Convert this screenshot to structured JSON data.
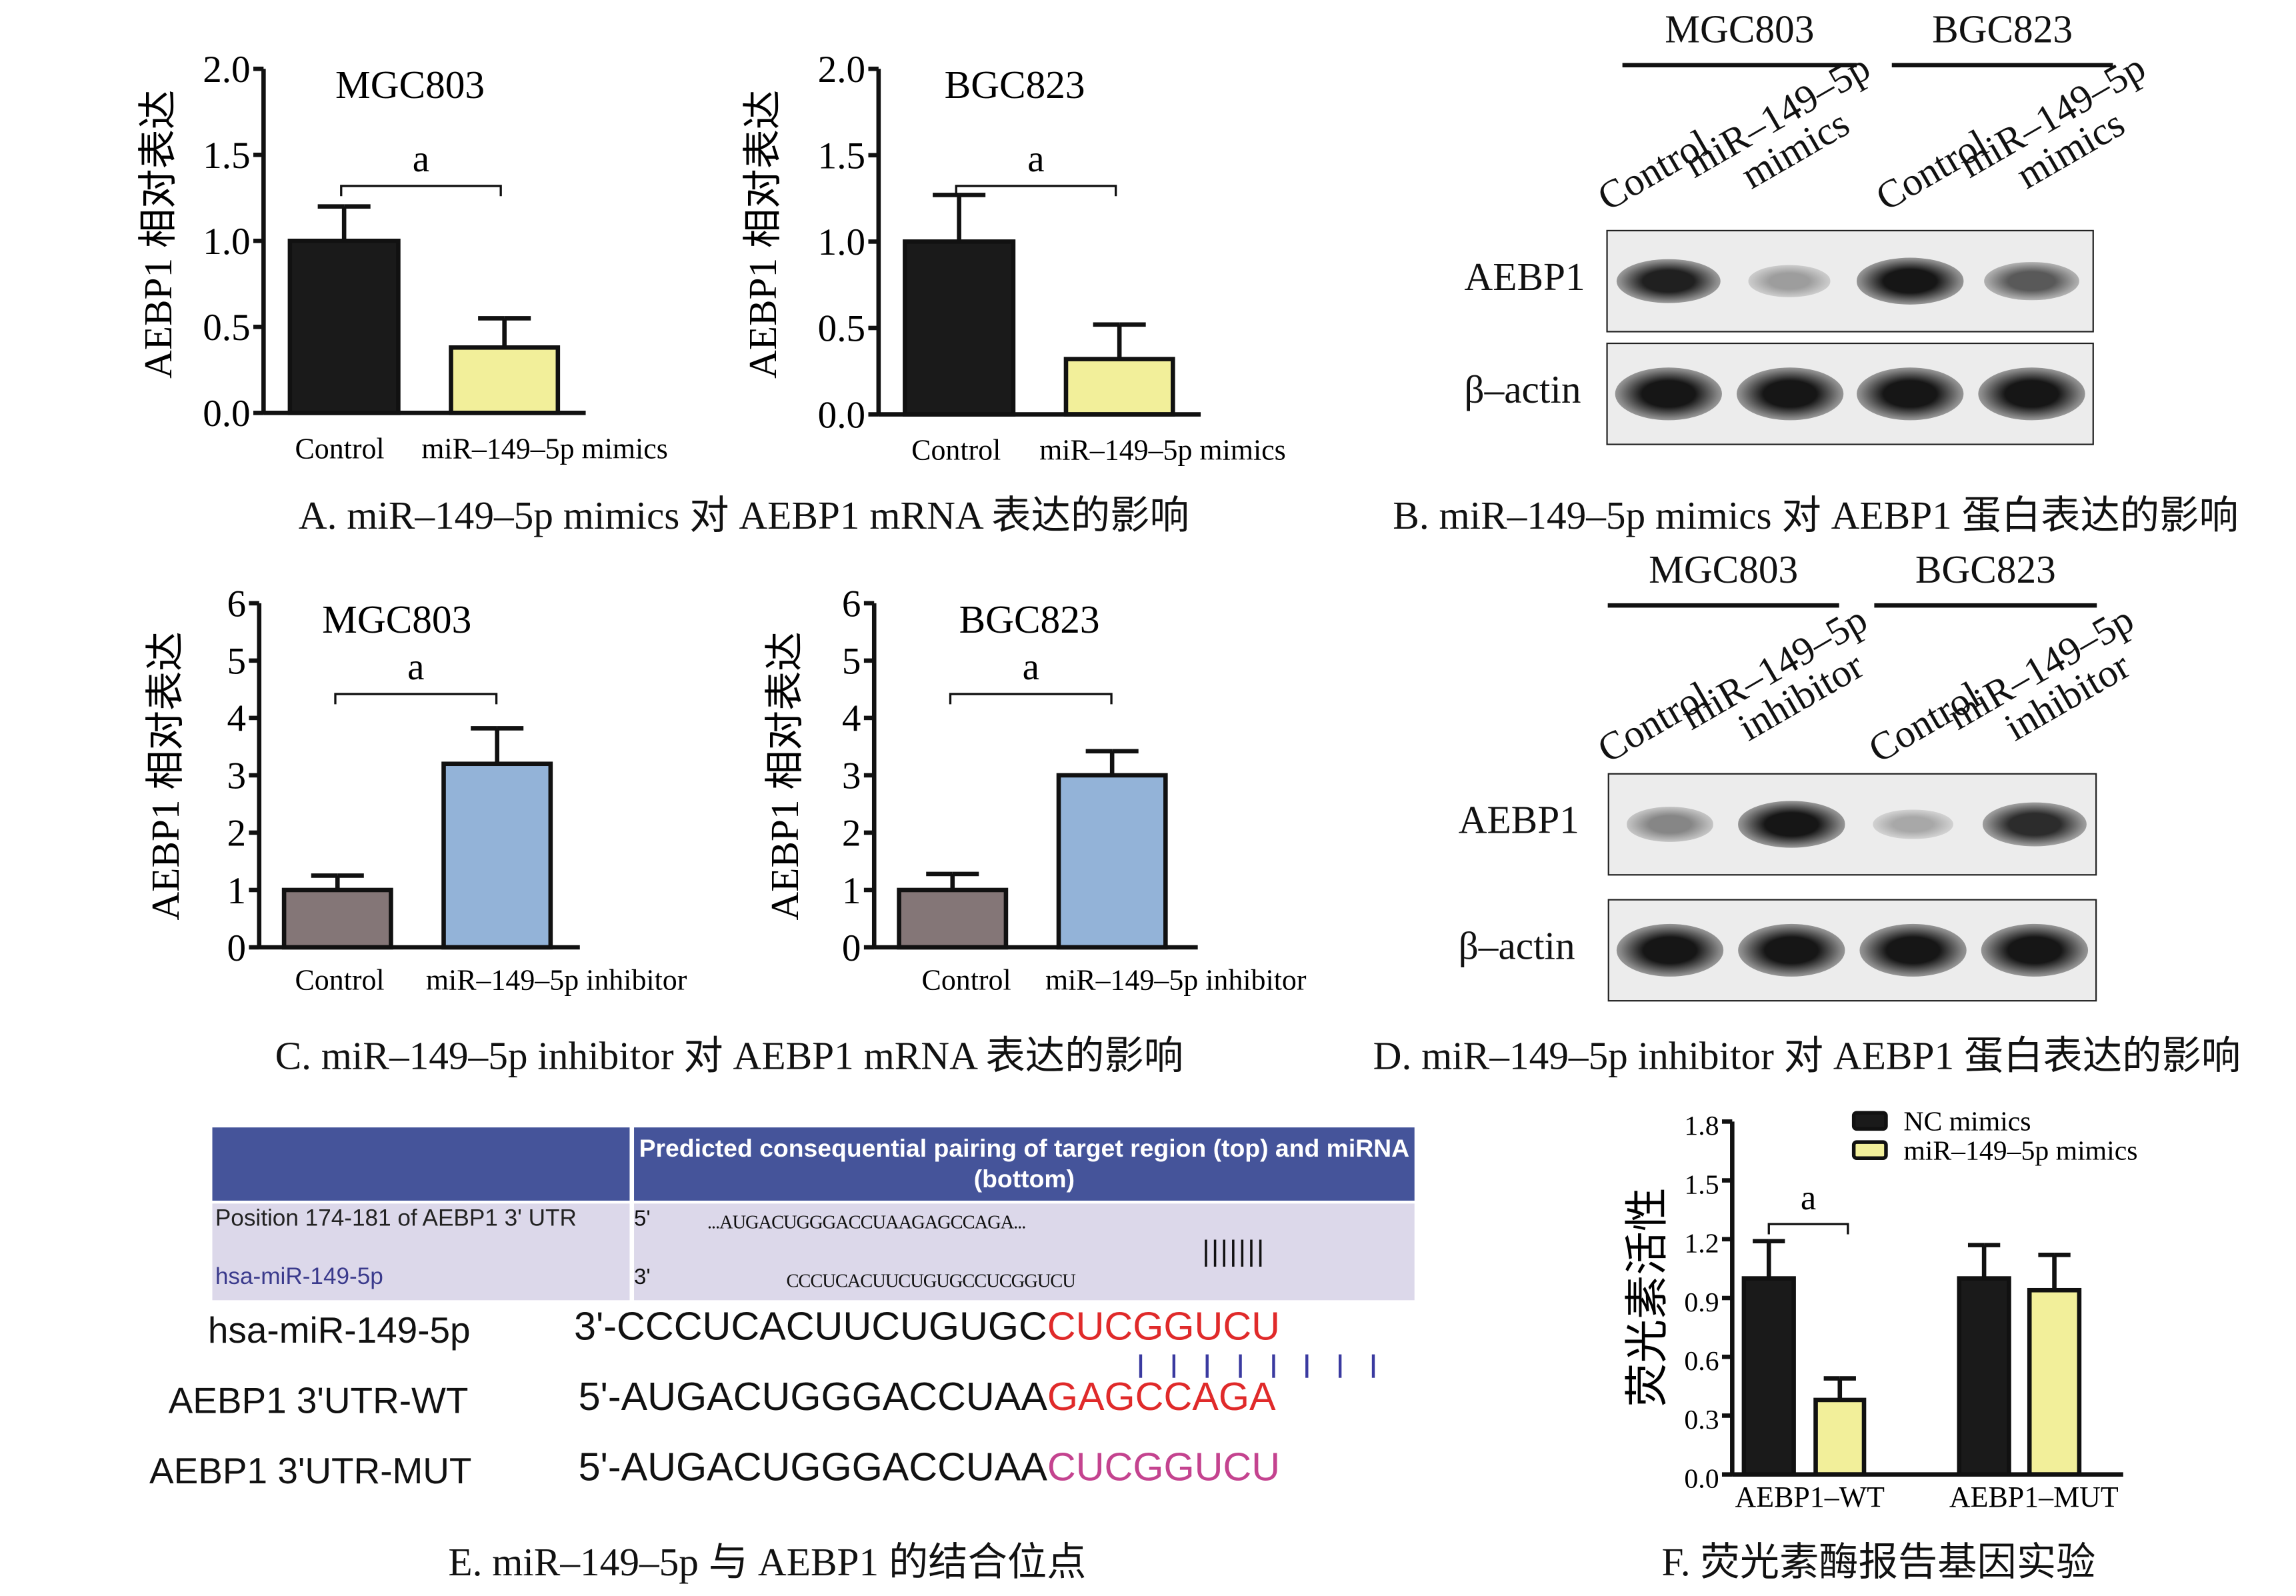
{
  "captions": {
    "A": "A. miR–149–5p mimics 对 AEBP1 mRNA 表达的影响",
    "B": "B. miR–149–5p mimics 对 AEBP1 蛋白表达的影响",
    "C": "C. miR–149–5p inhibitor 对 AEBP1 mRNA 表达的影响",
    "D": "D. miR–149–5p inhibitor 对 AEBP1 蛋白表达的影响",
    "E": "E. miR–149–5p 与 AEBP1 的结合位点",
    "F": "F. 荧光素酶报告基因实验"
  },
  "chart_data": [
    {
      "type": "bar",
      "panel": "A",
      "title": "MGC803",
      "ylabel": "AEBP1 相对表达",
      "xlabel": "",
      "categories": [
        "Control",
        "miR–149–5p mimics"
      ],
      "values": [
        1.0,
        0.38
      ],
      "error_upper": [
        1.2,
        0.55
      ],
      "colors": [
        "#1a1a1a",
        "#f2ef9a"
      ],
      "ylim": [
        0,
        2.0
      ],
      "yticks": [
        "0.0",
        "0.5",
        "1.0",
        "1.5",
        "2.0"
      ],
      "significance": "a",
      "grid": false
    },
    {
      "type": "bar",
      "panel": "A",
      "title": "BGC823",
      "ylabel": "AEBP1 相对表达",
      "xlabel": "",
      "categories": [
        "Control",
        "miR–149–5p mimics"
      ],
      "values": [
        1.0,
        0.32
      ],
      "error_upper": [
        1.27,
        0.52
      ],
      "colors": [
        "#1a1a1a",
        "#f2ef9a"
      ],
      "ylim": [
        0,
        2.0
      ],
      "yticks": [
        "0.0",
        "0.5",
        "1.0",
        "1.5",
        "2.0"
      ],
      "significance": "a",
      "grid": false
    },
    {
      "type": "bar",
      "panel": "C",
      "title": "MGC803",
      "ylabel": "AEBP1 相对表达",
      "xlabel": "",
      "categories": [
        "Control",
        "miR–149–5p inhibitor"
      ],
      "values": [
        1.0,
        3.2
      ],
      "error_upper": [
        1.25,
        3.82
      ],
      "colors": [
        "#847677",
        "#93b3d8"
      ],
      "ylim": [
        0,
        6
      ],
      "yticks": [
        "0",
        "1",
        "2",
        "3",
        "4",
        "5",
        "6"
      ],
      "significance": "a",
      "grid": false
    },
    {
      "type": "bar",
      "panel": "C",
      "title": "BGC823",
      "ylabel": "AEBP1 相对表达",
      "xlabel": "",
      "categories": [
        "Control",
        "miR–149–5p inhibitor"
      ],
      "values": [
        1.0,
        3.0
      ],
      "error_upper": [
        1.28,
        3.42
      ],
      "colors": [
        "#847677",
        "#93b3d8"
      ],
      "ylim": [
        0,
        6
      ],
      "yticks": [
        "0",
        "1",
        "2",
        "3",
        "4",
        "5",
        "6"
      ],
      "significance": "a",
      "grid": false
    },
    {
      "type": "bar",
      "panel": "F",
      "title": "",
      "ylabel": "荧光素活性",
      "xlabel": "",
      "categories": [
        "AEBP1–WT",
        "AEBP1–MUT"
      ],
      "series": [
        {
          "name": "NC mimics",
          "values": [
            1.0,
            1.0
          ],
          "error_upper": [
            1.19,
            1.17
          ],
          "color": "#1a1a1a"
        },
        {
          "name": "miR–149–5p mimics",
          "values": [
            0.38,
            0.94
          ],
          "error_upper": [
            0.49,
            1.12
          ],
          "color": "#f2ef9a"
        }
      ],
      "ylim": [
        0,
        1.8
      ],
      "yticks": [
        "0.0",
        "0.3",
        "0.6",
        "0.9",
        "1.2",
        "1.5",
        "1.8"
      ],
      "significance": "a",
      "legend": "top-right",
      "grid": false
    }
  ],
  "blots": {
    "B": {
      "groups": [
        "MGC803",
        "BGC823"
      ],
      "lanes": [
        [
          "Control"
        ],
        [
          "miR–149–5p",
          "mimics"
        ],
        [
          "Control"
        ],
        [
          "miR–149–5p",
          "mimics"
        ]
      ],
      "rows": [
        "AEBP1",
        "β–actin"
      ],
      "aebp1_intensity": [
        0.9,
        0.35,
        0.95,
        0.65
      ],
      "actin_intensity": [
        0.95,
        0.95,
        0.95,
        0.95
      ]
    },
    "D": {
      "groups": [
        "MGC803",
        "BGC823"
      ],
      "lanes": [
        [
          "Control"
        ],
        [
          "miR–149–5p",
          "inhibitor"
        ],
        [
          "Control"
        ],
        [
          "miR–149–5p",
          "inhibitor"
        ]
      ],
      "rows": [
        "AEBP1",
        "β–actin"
      ],
      "aebp1_intensity": [
        0.45,
        0.95,
        0.3,
        0.85
      ],
      "actin_intensity": [
        0.95,
        0.95,
        0.95,
        0.95
      ]
    }
  },
  "binding": {
    "table_header": "Predicted consequential pairing of target region (top) and miRNA (bottom)",
    "row1_label": "Position 174-181 of AEBP1 3' UTR",
    "row2_label": "hsa-miR-149-5p",
    "row1_end": "5'",
    "row2_end": "3'",
    "row1_seq": "...AUGACUGGGACCUAAGAGCCAGA...",
    "row2_seq": "CCCUCACUUCUGUGCCUCGGUCU",
    "pair_marks": "|||||||",
    "lines": [
      {
        "label": "hsa-miR-149-5p",
        "prefix": "3'-CCCUCACUUCUGUGC",
        "site": "CUCGGUCU",
        "site_color": "#e02a2a"
      },
      {
        "label": "AEBP1  3'UTR-WT",
        "prefix": "5'-AUGACUGGGACCUAA",
        "site": "GAGCCAGA",
        "site_color": "#e02a2a"
      },
      {
        "label": "AEBP1 3'UTR-MUT",
        "prefix": "5'-AUGACUGGGACCUAA",
        "site": "CUCGGUCU",
        "site_color": "#c4438f"
      }
    ]
  }
}
